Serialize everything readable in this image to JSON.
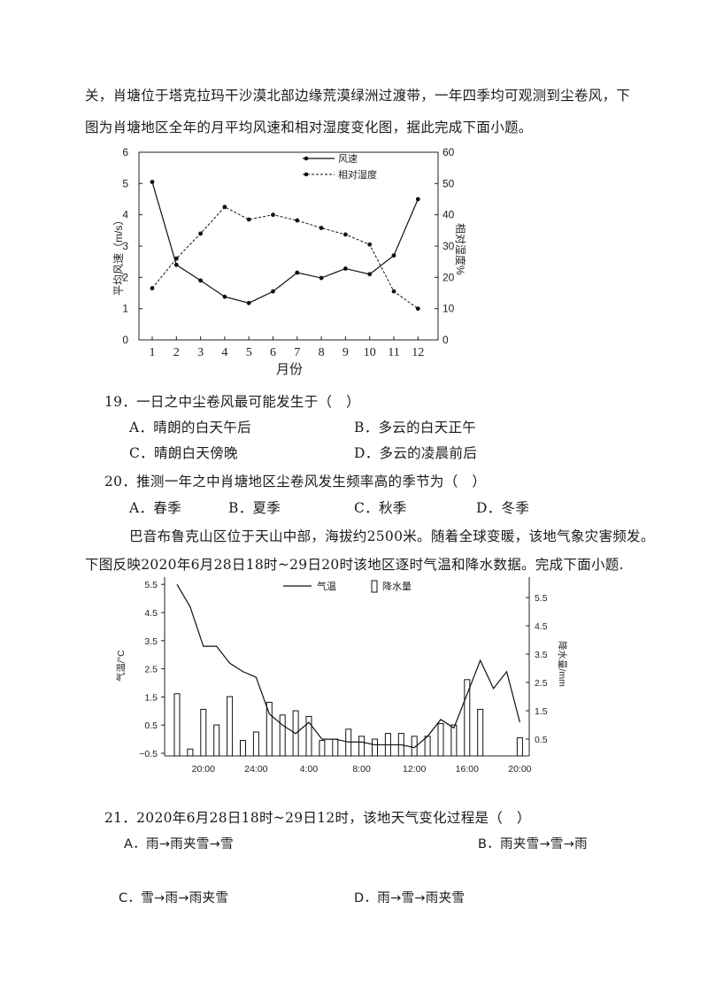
{
  "intro1": {
    "line1": "关，肖塘位于塔克拉玛干沙漠北部边缘荒漠绿洲过渡带，一年四季均可观测到尘卷风，下",
    "line2": "图为肖塘地区全年的月平均风速和相对湿度变化图，据此完成下面小题。"
  },
  "chart1_text": {
    "y_left_label": "平均风速（m/s）",
    "y_right_label": "相对湿度%",
    "x_label": "月份",
    "legend_wind": "风速",
    "legend_humidity": "相对湿度"
  },
  "q19": {
    "stem": "19．一日之中尘卷风最可能发生于（　）",
    "A": "A．晴朗的白天午后",
    "B": "B．多云的白天正午",
    "C": "C．晴朗白天傍晚",
    "D": "D．多云的凌晨前后"
  },
  "q20": {
    "stem": "20．推测一年之中肖塘地区尘卷风发生频率高的季节为（　）",
    "A": "A．春季",
    "B": "B．夏季",
    "C": "C．秋季",
    "D": "D．冬季"
  },
  "intro2": {
    "line1": "巴音布鲁克山区位于天山中部，海拔约2500米。随着全球变暖，该地气象灾害频发。",
    "line2": "下图反映2020年6月28日18时~29日20时该地区逐时气温和降水数据。完成下面小题."
  },
  "chart2_text": {
    "y_left_label": "气温/°C",
    "y_right_label": "降水量/mm",
    "legend_temp": "气温",
    "legend_precip": "降水量"
  },
  "q21": {
    "stem": "21．2020年6月28日18时~29日12时，该地天气变化过程是（　）",
    "A": "A．雨→雨夹雪→雪",
    "B": "B．雨夹雪→雪→雨",
    "C": "C．雪→雨→雨夹雪",
    "D": "D．雨→雪→雨夹雪"
  },
  "chart_data": [
    {
      "type": "line",
      "x": [
        1,
        2,
        3,
        4,
        5,
        6,
        7,
        8,
        9,
        10,
        11,
        12
      ],
      "x_tick_labels": [
        "1",
        "2",
        "3",
        "4",
        "5",
        "6",
        "7",
        "8",
        "9",
        "10",
        "11",
        "12"
      ],
      "xlabel": "月份",
      "ylabel": "平均风速（m/s）",
      "y2label": "相对湿度%",
      "ylim": [
        0,
        6
      ],
      "y_ticks": [
        "0",
        "1",
        "2",
        "3",
        "4",
        "5",
        "6"
      ],
      "y2lim": [
        0,
        60
      ],
      "y2_ticks": [
        "0",
        "10",
        "20",
        "30",
        "40",
        "50",
        "60"
      ],
      "legend": "top-center",
      "grid": false,
      "series": [
        {
          "name": "风速",
          "axis": "left",
          "style": "solid",
          "values": [
            5.05,
            2.4,
            1.9,
            1.38,
            1.18,
            1.55,
            2.15,
            1.98,
            2.28,
            2.1,
            2.7,
            4.5
          ]
        },
        {
          "name": "相对湿度",
          "axis": "right",
          "style": "dashed",
          "values": [
            16.5,
            26,
            34,
            42.5,
            38.5,
            40,
            38.2,
            35.8,
            33.7,
            30.5,
            15.5,
            10
          ]
        }
      ]
    },
    {
      "type": "bar",
      "combo": "bar+line",
      "x_tick_labels": [
        "20:00",
        "24:00",
        "4:00",
        "8:00",
        "12:00",
        "16:00",
        "20:00"
      ],
      "x_tick_hours": [
        20,
        24,
        28,
        32,
        36,
        40,
        44
      ],
      "ylabel": "气温/°C",
      "y2label": "降水量/mm",
      "ylim": [
        -0.5,
        6
      ],
      "y_ticks": [
        "−0.5",
        "0.5",
        "1.5",
        "2.5",
        "3.5",
        "4.5",
        "5.5"
      ],
      "y2lim": [
        0,
        6.5
      ],
      "y2_ticks": [
        "0.5",
        "1.5",
        "2.5",
        "3.5",
        "4.5",
        "5.5"
      ],
      "legend": "top",
      "grid": false,
      "series": [
        {
          "name": "气温",
          "axis": "left",
          "x_hours": [
            18,
            19,
            20,
            21,
            22,
            23,
            24,
            25,
            26,
            27,
            28,
            29,
            30,
            31,
            32,
            33,
            34,
            35,
            36,
            37,
            38,
            39,
            40,
            41,
            42,
            43,
            44
          ],
          "values": [
            5.5,
            4.7,
            3.3,
            3.3,
            2.7,
            2.4,
            2.2,
            0.9,
            0.5,
            0.2,
            0.6,
            0.0,
            0.0,
            -0.1,
            -0.1,
            -0.2,
            -0.2,
            -0.2,
            -0.3,
            0.1,
            0.7,
            0.4,
            1.6,
            2.8,
            1.8,
            2.4,
            0.6
          ]
        },
        {
          "name": "降水量",
          "axis": "right",
          "x_hours": [
            18,
            19,
            20,
            21,
            22,
            23,
            24,
            25,
            26,
            27,
            28,
            29,
            30,
            31,
            32,
            33,
            34,
            35,
            36,
            37,
            38,
            39,
            40,
            41,
            42,
            43,
            44
          ],
          "values": [
            2.1,
            0.15,
            1.55,
            1.0,
            2.0,
            0.45,
            0.75,
            1.8,
            1.35,
            1.5,
            1.3,
            0.45,
            0.5,
            0.85,
            0.6,
            0.5,
            0.7,
            0.7,
            0.6,
            0.6,
            1.05,
            1.0,
            2.6,
            1.55,
            0,
            0,
            0.55
          ]
        }
      ]
    }
  ]
}
